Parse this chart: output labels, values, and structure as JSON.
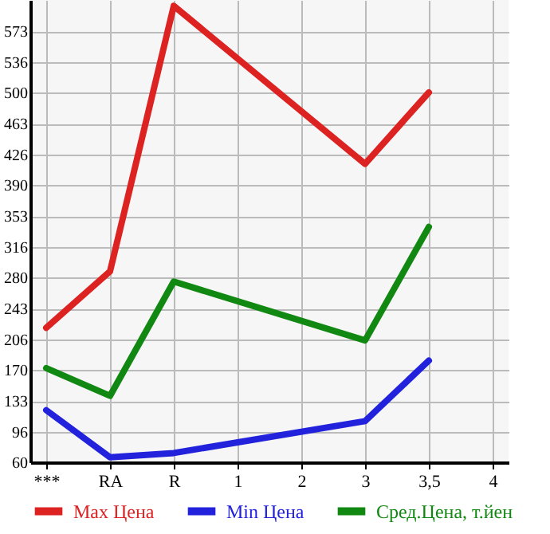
{
  "chart_data": {
    "type": "line",
    "categories": [
      "***",
      "RA",
      "R",
      "1",
      "2",
      "3",
      "3,5",
      "4"
    ],
    "series": [
      {
        "name": "Max Цена",
        "color": "#dd2222",
        "values": [
          220,
          287,
          603,
          null,
          null,
          415,
          500,
          null
        ]
      },
      {
        "name": "Min Цена",
        "color": "#2222dd",
        "values": [
          122,
          66,
          71,
          null,
          null,
          109,
          181,
          null
        ]
      },
      {
        "name": "Сред.Цена, т.йен",
        "color": "#118811",
        "values": [
          172,
          139,
          275,
          null,
          null,
          205,
          340,
          null
        ]
      }
    ],
    "ylim": [
      60,
      610
    ],
    "yticks": [
      60,
      96,
      133,
      170,
      206,
      243,
      280,
      316,
      353,
      390,
      426,
      463,
      500,
      536,
      573
    ],
    "grid": true,
    "legend": "bottom",
    "marker": "none",
    "line_style": "solid"
  }
}
